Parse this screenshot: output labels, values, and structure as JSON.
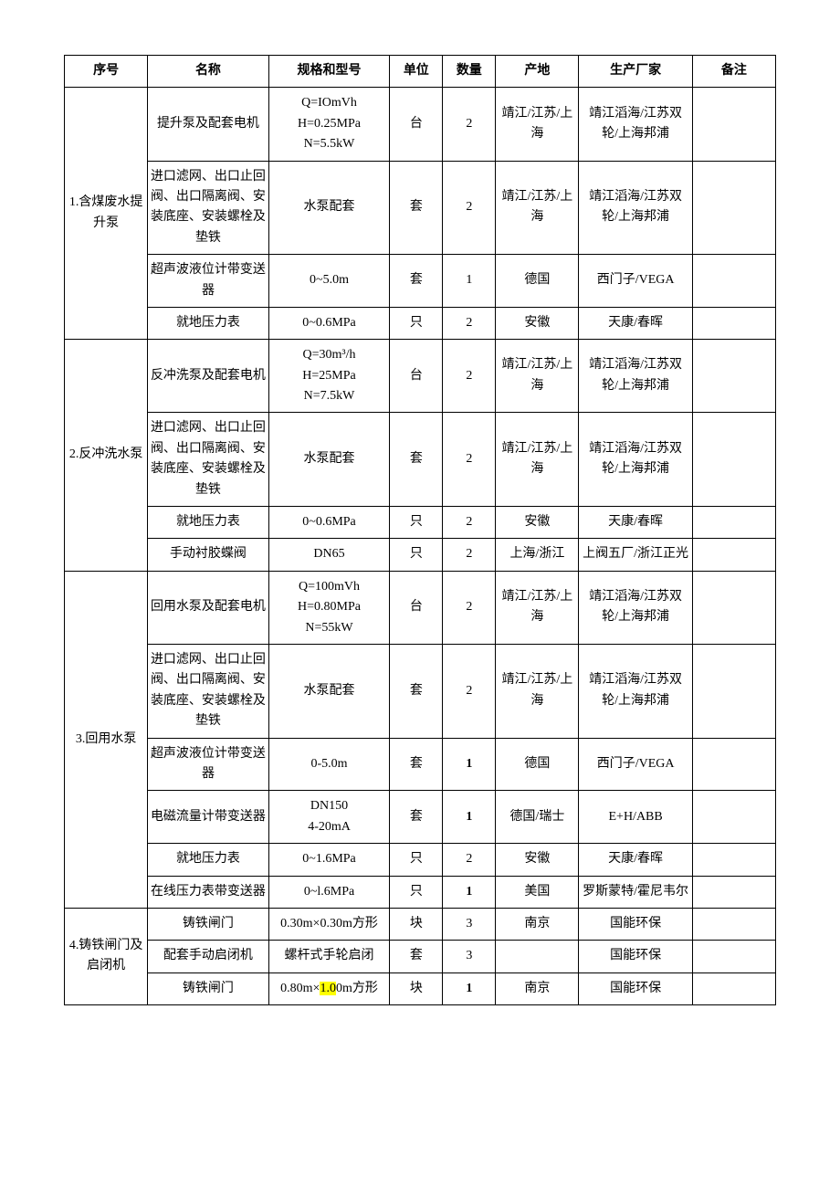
{
  "headers": {
    "seq": "序号",
    "name": "名称",
    "spec": "规格和型号",
    "unit": "单位",
    "qty": "数量",
    "origin": "产地",
    "mfr": "生产厂家",
    "note": "备注"
  },
  "groups": [
    {
      "seq": "1.含煤废水提升泵",
      "rows": [
        {
          "name": "提升泵及配套电机",
          "spec": "Q=IOmVh\nH=0.25MPa\nN=5.5kW",
          "unit": "台",
          "qty": "2",
          "origin": "靖江/江苏/上海",
          "mfr": "靖江滔海/江苏双轮/上海邦浦",
          "note": ""
        },
        {
          "name": "进口滤网、出口止回阀、出口隔离阀、安装底座、安装螺栓及垫铁",
          "spec": "水泵配套",
          "unit": "套",
          "qty": "2",
          "origin": "靖江/江苏/上海",
          "mfr": "靖江滔海/江苏双轮/上海邦浦",
          "note": ""
        },
        {
          "name": "超声波液位计带变送器",
          "spec": "0~5.0m",
          "unit": "套",
          "qty": "1",
          "origin": "德国",
          "mfr": "西门子/VEGA",
          "note": ""
        },
        {
          "name": "就地压力表",
          "spec": "0~0.6MPa",
          "unit": "只",
          "qty": "2",
          "origin": "安徽",
          "mfr": "天康/春晖",
          "note": ""
        }
      ]
    },
    {
      "seq": "2.反冲洗水泵",
      "rows": [
        {
          "name": "反冲洗泵及配套电机",
          "spec": "Q=30m³/h\nH=25MPa\nN=7.5kW",
          "unit": "台",
          "qty": "2",
          "origin": "靖江/江苏/上海",
          "mfr": "靖江滔海/江苏双轮/上海邦浦",
          "note": ""
        },
        {
          "name": "进口滤网、出口止回阀、出口隔离阀、安装底座、安装螺栓及垫铁",
          "spec": "水泵配套",
          "unit": "套",
          "qty": "2",
          "origin": "靖江/江苏/上海",
          "mfr": "靖江滔海/江苏双轮/上海邦浦",
          "note": ""
        },
        {
          "name": "就地压力表",
          "spec": "0~0.6MPa",
          "unit": "只",
          "qty": "2",
          "origin": "安徽",
          "mfr": "天康/春晖",
          "note": ""
        },
        {
          "name": "手动衬胶蝶阀",
          "spec": "DN65",
          "unit": "只",
          "qty": "2",
          "origin": "上海/浙江",
          "mfr": "上阀五厂/浙江正光",
          "note": ""
        }
      ]
    },
    {
      "seq": "3.回用水泵",
      "rows": [
        {
          "name": "回用水泵及配套电机",
          "spec": "Q=100mVh\nH=0.80MPa\nN=55kW",
          "unit": "台",
          "qty": "2",
          "origin": "靖江/江苏/上海",
          "mfr": "靖江滔海/江苏双轮/上海邦浦",
          "note": ""
        },
        {
          "name": "进口滤网、出口止回阀、出口隔离阀、安装底座、安装螺栓及垫铁",
          "spec": "水泵配套",
          "unit": "套",
          "qty": "2",
          "origin": "靖江/江苏/上海",
          "mfr": "靖江滔海/江苏双轮/上海邦浦",
          "note": ""
        },
        {
          "name": "超声波液位计带变送器",
          "spec": "0-5.0m",
          "unit": "套",
          "qty": "1",
          "qty_bold": true,
          "origin": "德国",
          "mfr": "西门子/VEGA",
          "note": ""
        },
        {
          "name": "电磁流量计带变送器",
          "spec": "DN150\n4-20mA",
          "unit": "套",
          "qty": "1",
          "qty_bold": true,
          "origin": "德国/瑞士",
          "mfr": "E+H/ABB",
          "note": ""
        },
        {
          "name": "就地压力表",
          "spec": "0~1.6MPa",
          "unit": "只",
          "qty": "2",
          "origin": "安徽",
          "mfr": "天康/春晖",
          "note": ""
        },
        {
          "name": "在线压力表带变送器",
          "spec": "0~l.6MPa",
          "unit": "只",
          "qty": "1",
          "qty_bold": true,
          "origin": "美国",
          "mfr": "罗斯蒙特/霍尼韦尔",
          "note": ""
        }
      ]
    },
    {
      "seq": "4.铸铁闸门及启闭机",
      "rows": [
        {
          "name": "铸铁闸门",
          "spec": "0.30m×0.30m方形",
          "unit": "块",
          "qty": "3",
          "origin": "南京",
          "mfr": "国能环保",
          "note": ""
        },
        {
          "name": "配套手动启闭机",
          "spec": "螺杆式手轮启闭",
          "unit": "套",
          "qty": "3",
          "origin": "",
          "mfr": "国能环保",
          "note": ""
        },
        {
          "name": "铸铁闸门",
          "spec_pre": "0.80m×",
          "spec_hl": "1.0",
          "spec_post": "0m方形",
          "unit": "块",
          "qty": "1",
          "qty_bold": true,
          "origin": "南京",
          "mfr": "国能环保",
          "note": ""
        }
      ]
    }
  ]
}
